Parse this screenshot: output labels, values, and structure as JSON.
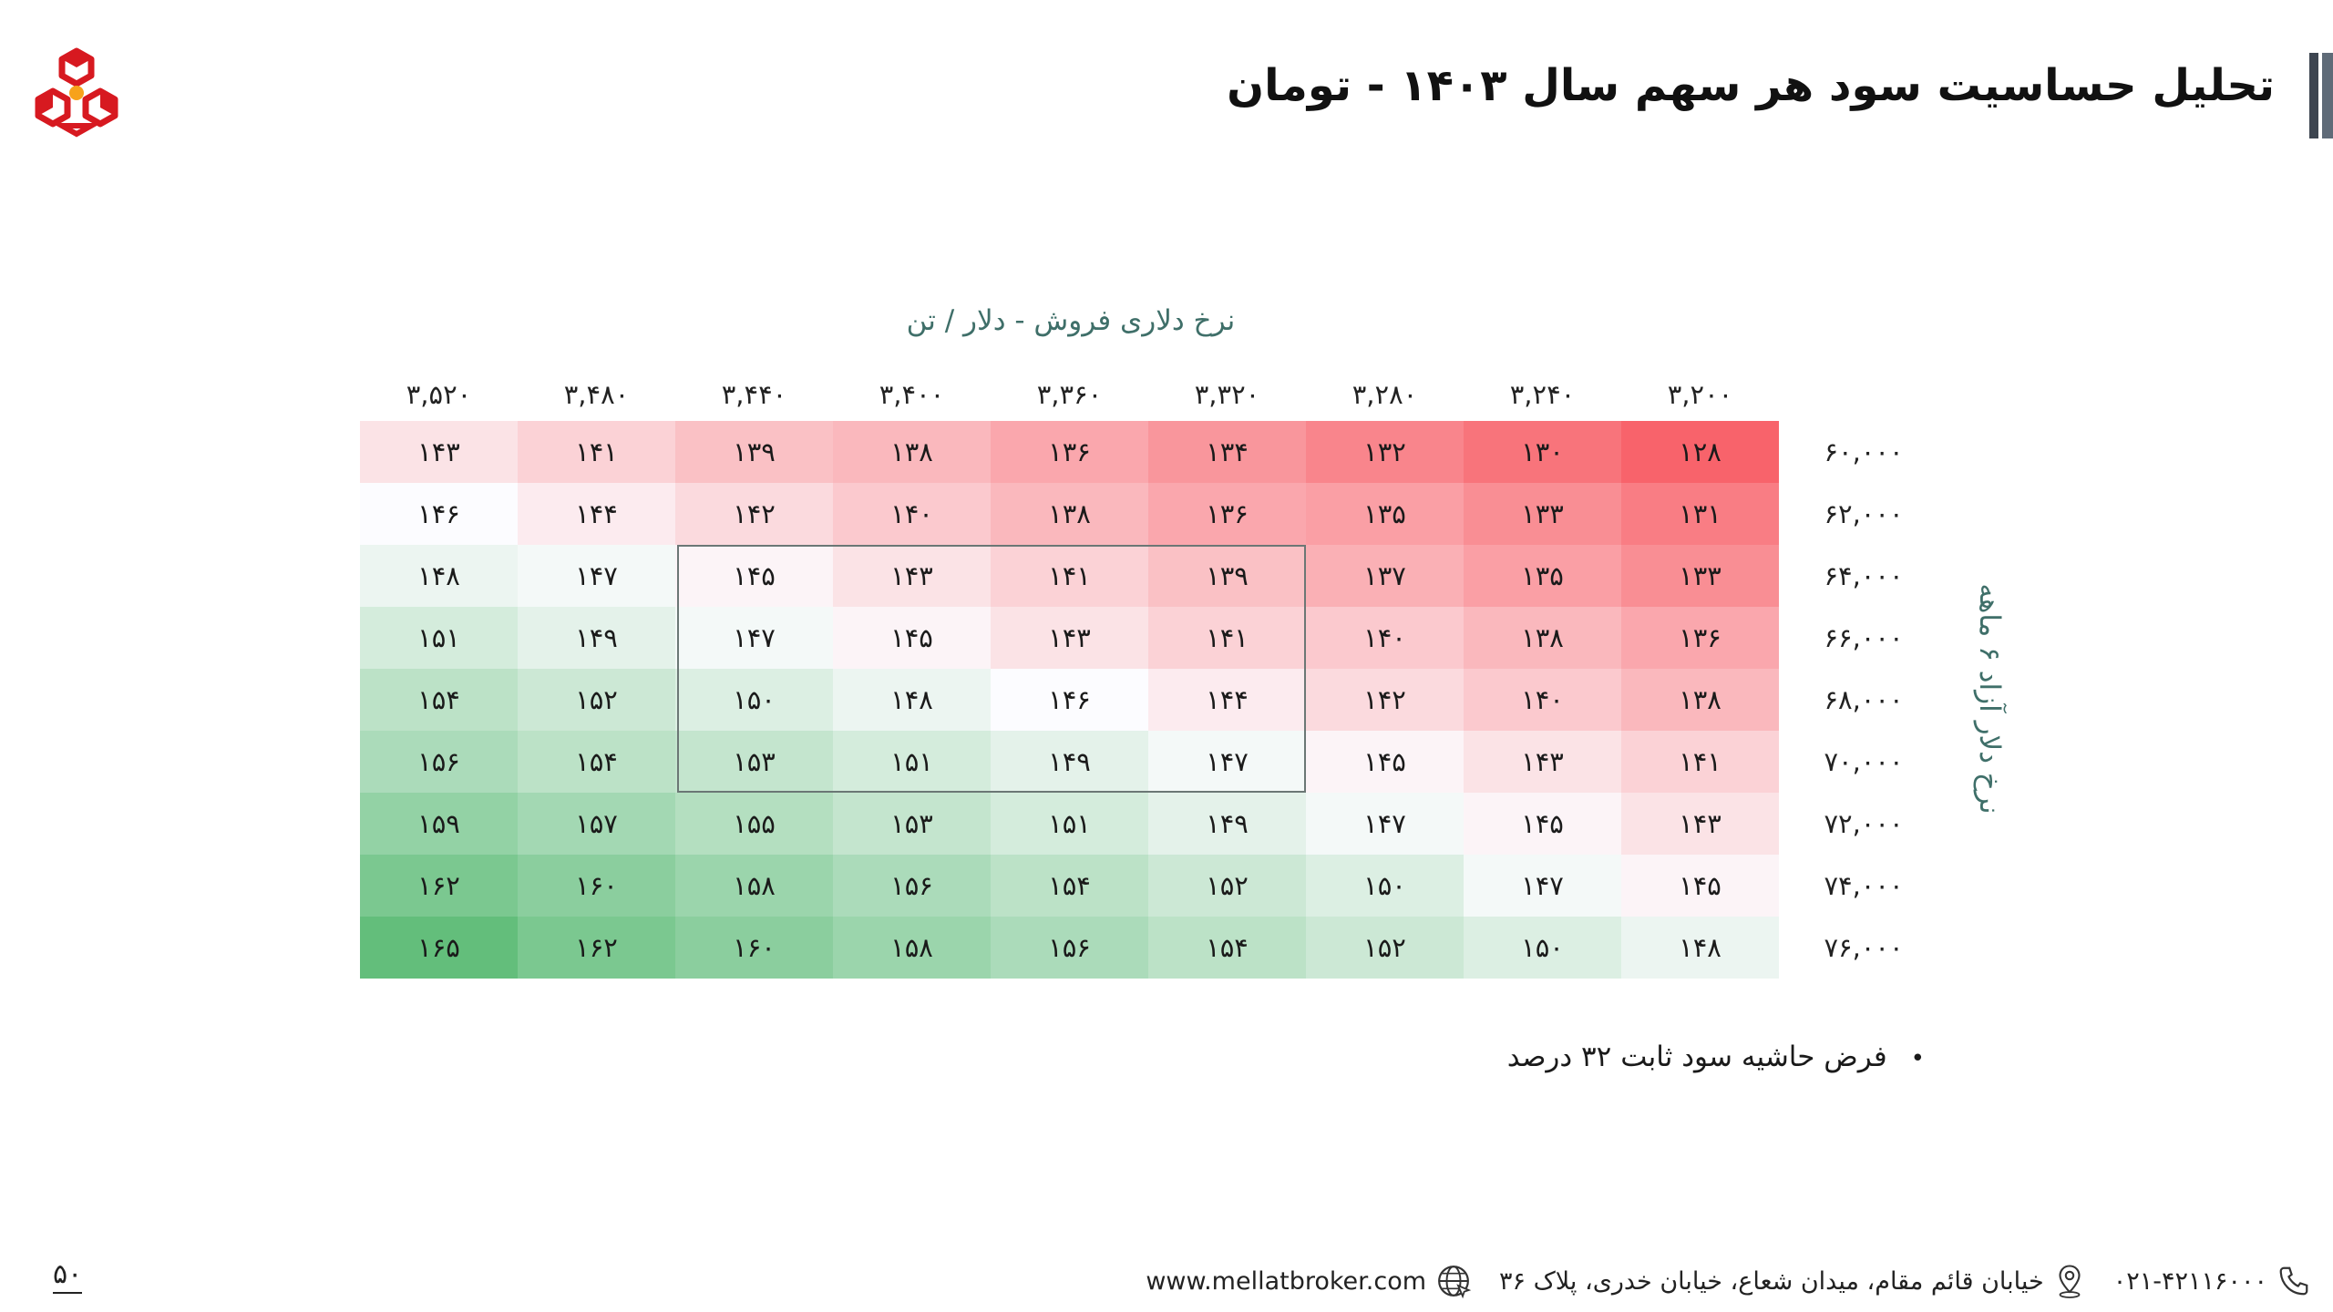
{
  "title": "تحلیل حساسیت سود هر سهم سال ۱۴۰۳ - تومان",
  "table": {
    "col_axis_label": "نرخ دلاری فروش - دلار / تن",
    "row_axis_label": "نرخ دلار آزاد ۶ ماهه",
    "col_headers": [
      "۳,۲۰۰",
      "۳,۲۴۰",
      "۳,۲۸۰",
      "۳,۳۲۰",
      "۳,۳۶۰",
      "۳,۴۰۰",
      "۳,۴۴۰",
      "۳,۴۸۰",
      "۳,۵۲۰"
    ],
    "row_headers": [
      "۶۰,۰۰۰",
      "۶۲,۰۰۰",
      "۶۴,۰۰۰",
      "۶۶,۰۰۰",
      "۶۸,۰۰۰",
      "۷۰,۰۰۰",
      "۷۲,۰۰۰",
      "۷۴,۰۰۰",
      "۷۶,۰۰۰"
    ],
    "values": [
      [
        128,
        130,
        132,
        134,
        136,
        138,
        139,
        141,
        143
      ],
      [
        131,
        133,
        135,
        136,
        138,
        140,
        142,
        144,
        146
      ],
      [
        133,
        135,
        137,
        139,
        141,
        143,
        145,
        147,
        148
      ],
      [
        136,
        138,
        140,
        141,
        143,
        145,
        147,
        149,
        151
      ],
      [
        138,
        140,
        142,
        144,
        146,
        148,
        150,
        152,
        154
      ],
      [
        141,
        143,
        145,
        147,
        149,
        151,
        153,
        154,
        156
      ],
      [
        143,
        145,
        147,
        149,
        151,
        153,
        155,
        157,
        159
      ],
      [
        145,
        147,
        150,
        152,
        154,
        156,
        158,
        160,
        162
      ],
      [
        148,
        150,
        152,
        154,
        156,
        158,
        160,
        162,
        165
      ]
    ]
  },
  "note": "فرض حاشیه سود ثابت ۳۲ درصد",
  "footer": {
    "phone": "۰۲۱-۴۲۱۱۶۰۰۰",
    "address": "خیابان قائم مقام، میدان شعاع، خیابان خدری، پلاک ۳۶",
    "website": "www.mellatbroker.com"
  },
  "page_number": "۵۰",
  "colors": {
    "low": "#f8636b",
    "mid": "#fcfcff",
    "high": "#63be7b",
    "accent": "#3f6f69"
  },
  "icons": {
    "phone": "phone-icon",
    "location": "location-pin-icon",
    "web": "globe-icon",
    "logo": "mellat-logo-icon"
  }
}
